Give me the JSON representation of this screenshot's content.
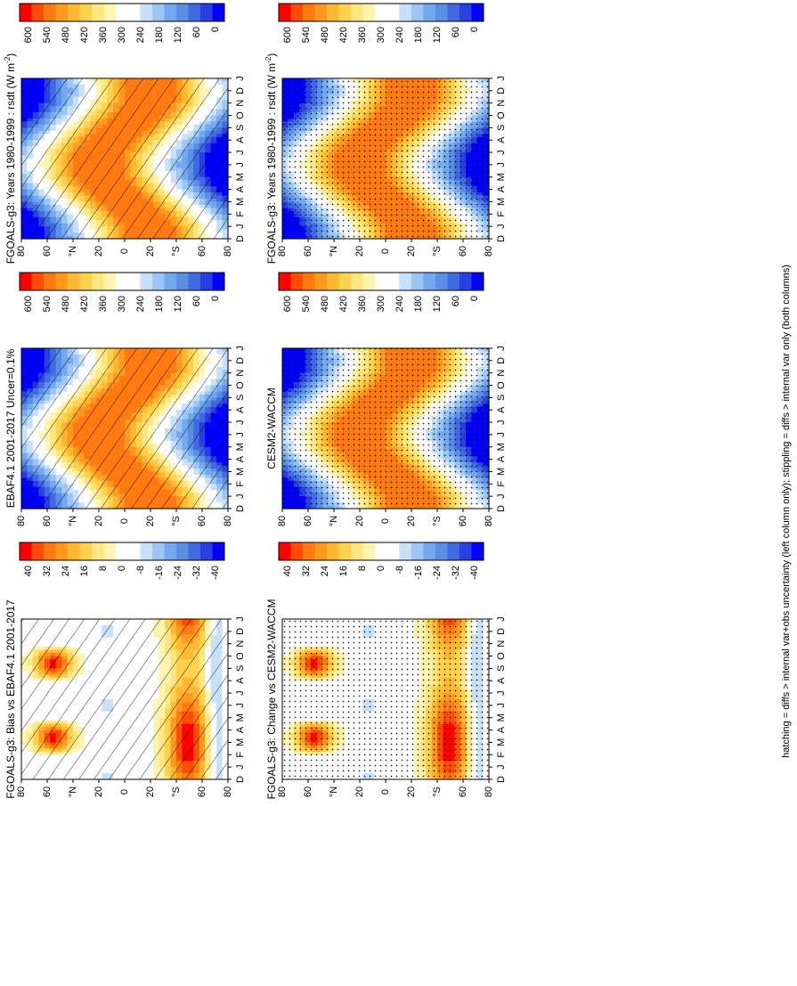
{
  "figure": {
    "footnote": "hatching = diffs > internal var+obs uncertainty (left column only); stippling = diffs > internal var only (both columns)"
  },
  "colors": {
    "abs_scale": [
      "#0000ff",
      "#2a3fe0",
      "#4169e1",
      "#5b8fe6",
      "#74a9f0",
      "#9cc6f5",
      "#c8e1fa",
      "#ffffff",
      "#ffffff",
      "#fff4b0",
      "#ffe680",
      "#ffd24d",
      "#ffb833",
      "#ff9a1f",
      "#ff7a10",
      "#ff4d05",
      "#ff0000"
    ],
    "diff_scale": [
      "#0000ff",
      "#2a3fe0",
      "#4169e1",
      "#5b8fe6",
      "#74a9f0",
      "#9cc6f5",
      "#c8e1fa",
      "#ffffff",
      "#ffffff",
      "#fff4b0",
      "#ffe680",
      "#ffd24d",
      "#ffb833",
      "#ff9a1f",
      "#ff7a10",
      "#ff4d05",
      "#ff0000"
    ]
  },
  "chart_data": [
    {
      "id": "left-top",
      "type": "heatmap",
      "title": "FGOALS-g3: Years 1980-1999 : rsdt (W m",
      "title_sup": "-2",
      "title_end": ")",
      "x_ticks": [
        "D",
        "J",
        "F",
        "M",
        "A",
        "M",
        "J",
        "J",
        "A",
        "S",
        "O",
        "N",
        "D",
        "J"
      ],
      "y_ticks": [
        "80",
        "60",
        "°N",
        "20",
        "0",
        "20",
        "°S",
        "60",
        "80"
      ],
      "colorbar_labels": [
        "600",
        "540",
        "480",
        "420",
        "360",
        "300",
        "240",
        "180",
        "120",
        "60",
        "0"
      ],
      "variable": "rsdt",
      "range": [
        0,
        600
      ],
      "overlay": "hatching"
    },
    {
      "id": "left-mid",
      "type": "heatmap",
      "title": "EBAF4.1 2001-2017 Uncer=0.1%",
      "x_ticks": [
        "D",
        "J",
        "F",
        "M",
        "A",
        "M",
        "J",
        "J",
        "A",
        "S",
        "O",
        "N",
        "D",
        "J"
      ],
      "y_ticks": [
        "80",
        "60",
        "°N",
        "20",
        "0",
        "20",
        "°S",
        "60",
        "80"
      ],
      "colorbar_labels": [
        "600",
        "540",
        "480",
        "420",
        "360",
        "300",
        "240",
        "180",
        "120",
        "60",
        "0"
      ],
      "variable": "rsdt",
      "range": [
        0,
        600
      ],
      "overlay": "hatching"
    },
    {
      "id": "left-bot",
      "type": "heatmap",
      "title": "FGOALS-g3: Bias vs EBAF4.1 2001-2017",
      "x_ticks": [
        "D",
        "J",
        "F",
        "M",
        "A",
        "M",
        "J",
        "J",
        "A",
        "S",
        "O",
        "N",
        "D",
        "J"
      ],
      "y_ticks": [
        "80",
        "60",
        "°N",
        "20",
        "0",
        "20",
        "°S",
        "60",
        "80"
      ],
      "colorbar_labels": [
        "40",
        "32",
        "24",
        "16",
        "8",
        "0",
        "-8",
        "-16",
        "-24",
        "-32",
        "-40"
      ],
      "variable": "rsdt bias",
      "range": [
        -40,
        40
      ],
      "overlay": "hatching"
    },
    {
      "id": "right-top",
      "type": "heatmap",
      "title": "FGOALS-g3: Years 1980-1999 : rsdt (W m",
      "title_sup": "-2",
      "title_end": ")",
      "x_ticks": [
        "D",
        "J",
        "F",
        "M",
        "A",
        "M",
        "J",
        "J",
        "A",
        "S",
        "O",
        "N",
        "D",
        "J"
      ],
      "y_ticks": [
        "80",
        "60",
        "°N",
        "20",
        "0",
        "20",
        "°S",
        "60",
        "80"
      ],
      "colorbar_labels": [
        "600",
        "540",
        "480",
        "420",
        "360",
        "300",
        "240",
        "180",
        "120",
        "60",
        "0"
      ],
      "variable": "rsdt",
      "range": [
        0,
        600
      ],
      "overlay": "stipple"
    },
    {
      "id": "right-mid",
      "type": "heatmap",
      "title": "CESM2-WACCM",
      "x_ticks": [
        "D",
        "J",
        "F",
        "M",
        "A",
        "M",
        "J",
        "J",
        "A",
        "S",
        "O",
        "N",
        "D",
        "J"
      ],
      "y_ticks": [
        "80",
        "60",
        "°N",
        "20",
        "0",
        "20",
        "°S",
        "60",
        "80"
      ],
      "colorbar_labels": [
        "600",
        "540",
        "480",
        "420",
        "360",
        "300",
        "240",
        "180",
        "120",
        "60",
        "0"
      ],
      "variable": "rsdt",
      "range": [
        0,
        600
      ],
      "overlay": "stipple"
    },
    {
      "id": "right-bot",
      "type": "heatmap",
      "title": "FGOALS-g3: Change vs CESM2-WACCM",
      "x_ticks": [
        "D",
        "J",
        "F",
        "M",
        "A",
        "M",
        "J",
        "J",
        "A",
        "S",
        "O",
        "N",
        "D",
        "J"
      ],
      "y_ticks": [
        "80",
        "60",
        "°N",
        "20",
        "0",
        "20",
        "°S",
        "60",
        "80"
      ],
      "colorbar_labels": [
        "40",
        "32",
        "24",
        "16",
        "8",
        "0",
        "-8",
        "-16",
        "-24",
        "-32",
        "-40"
      ],
      "variable": "rsdt change",
      "range": [
        -40,
        40
      ],
      "overlay": "stipple"
    }
  ]
}
